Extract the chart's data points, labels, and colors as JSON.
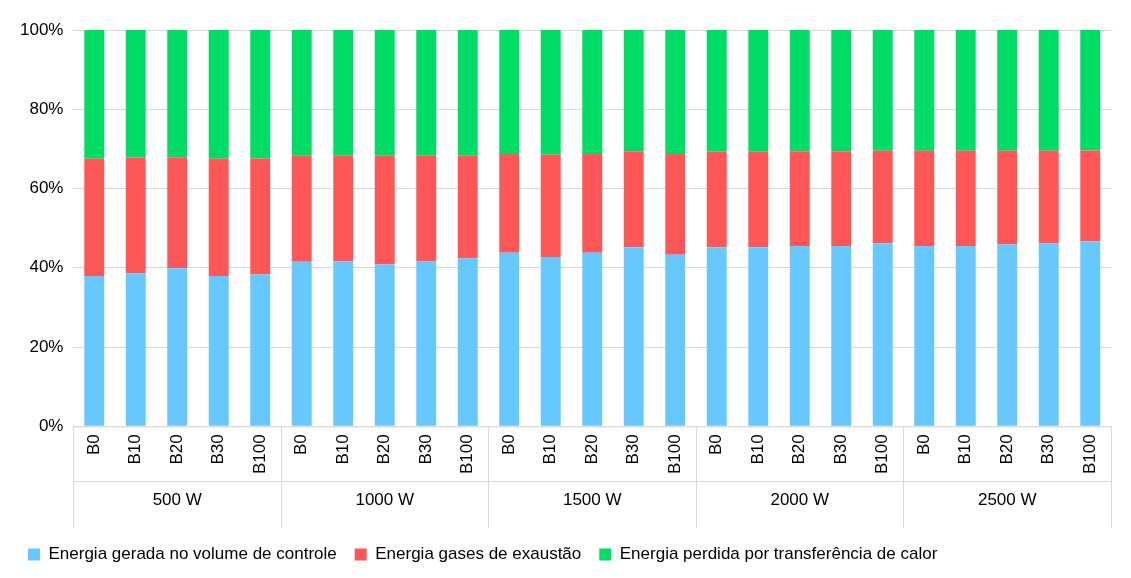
{
  "chart_data": {
    "type": "bar",
    "stacked": true,
    "grid": "y",
    "legend": "bottom",
    "categories": [
      "B0",
      "B10",
      "B20",
      "B30",
      "B100",
      "B0",
      "B10",
      "B20",
      "B30",
      "B100",
      "B0",
      "B10",
      "B20",
      "B30",
      "B100",
      "B0",
      "B10",
      "B20",
      "B30",
      "B100",
      "B0",
      "B10",
      "B20",
      "B30",
      "B100"
    ],
    "annotations": [
      "500 W",
      "1000 W",
      "1500 W",
      "2000 W",
      "2500 W"
    ],
    "ylim": [
      0,
      100
    ],
    "yticks": [
      {
        "value": 0,
        "label": "0%"
      },
      {
        "value": 20,
        "label": "20%"
      },
      {
        "value": 40,
        "label": "40%"
      },
      {
        "value": 60,
        "label": "60%"
      },
      {
        "value": 80,
        "label": "80%"
      },
      {
        "value": 100,
        "label": "100%"
      }
    ],
    "series": [
      {
        "name": "Energia gerada no volume de controle",
        "color": "#66c8ff",
        "values": [
          37.9,
          38.6,
          39.9,
          37.9,
          38.3,
          41.5,
          41.6,
          40.8,
          41.6,
          42.4,
          43.8,
          42.7,
          43.8,
          45.2,
          43.3,
          45.2,
          45.2,
          45.5,
          45.5,
          46.2,
          45.5,
          45.5,
          45.9,
          46.1,
          46.6
        ]
      },
      {
        "name": "Energia gases de exaustão",
        "color": "#ff5757",
        "values": [
          29.6,
          29.2,
          28.0,
          29.6,
          29.3,
          26.8,
          26.7,
          27.5,
          26.7,
          25.9,
          24.9,
          25.8,
          24.9,
          24.2,
          25.4,
          24.1,
          24.1,
          23.9,
          23.9,
          23.3,
          24.0,
          24.0,
          23.6,
          23.4,
          23.0
        ]
      },
      {
        "name": "Energia perdida por transferência de calor",
        "color": "#00dd66",
        "values": [
          32.5,
          32.2,
          32.1,
          32.5,
          32.4,
          31.7,
          31.7,
          31.7,
          31.7,
          31.7,
          31.3,
          31.5,
          31.3,
          30.6,
          31.3,
          30.7,
          30.7,
          30.6,
          30.6,
          30.5,
          30.5,
          30.5,
          30.5,
          30.5,
          30.4
        ]
      }
    ]
  }
}
